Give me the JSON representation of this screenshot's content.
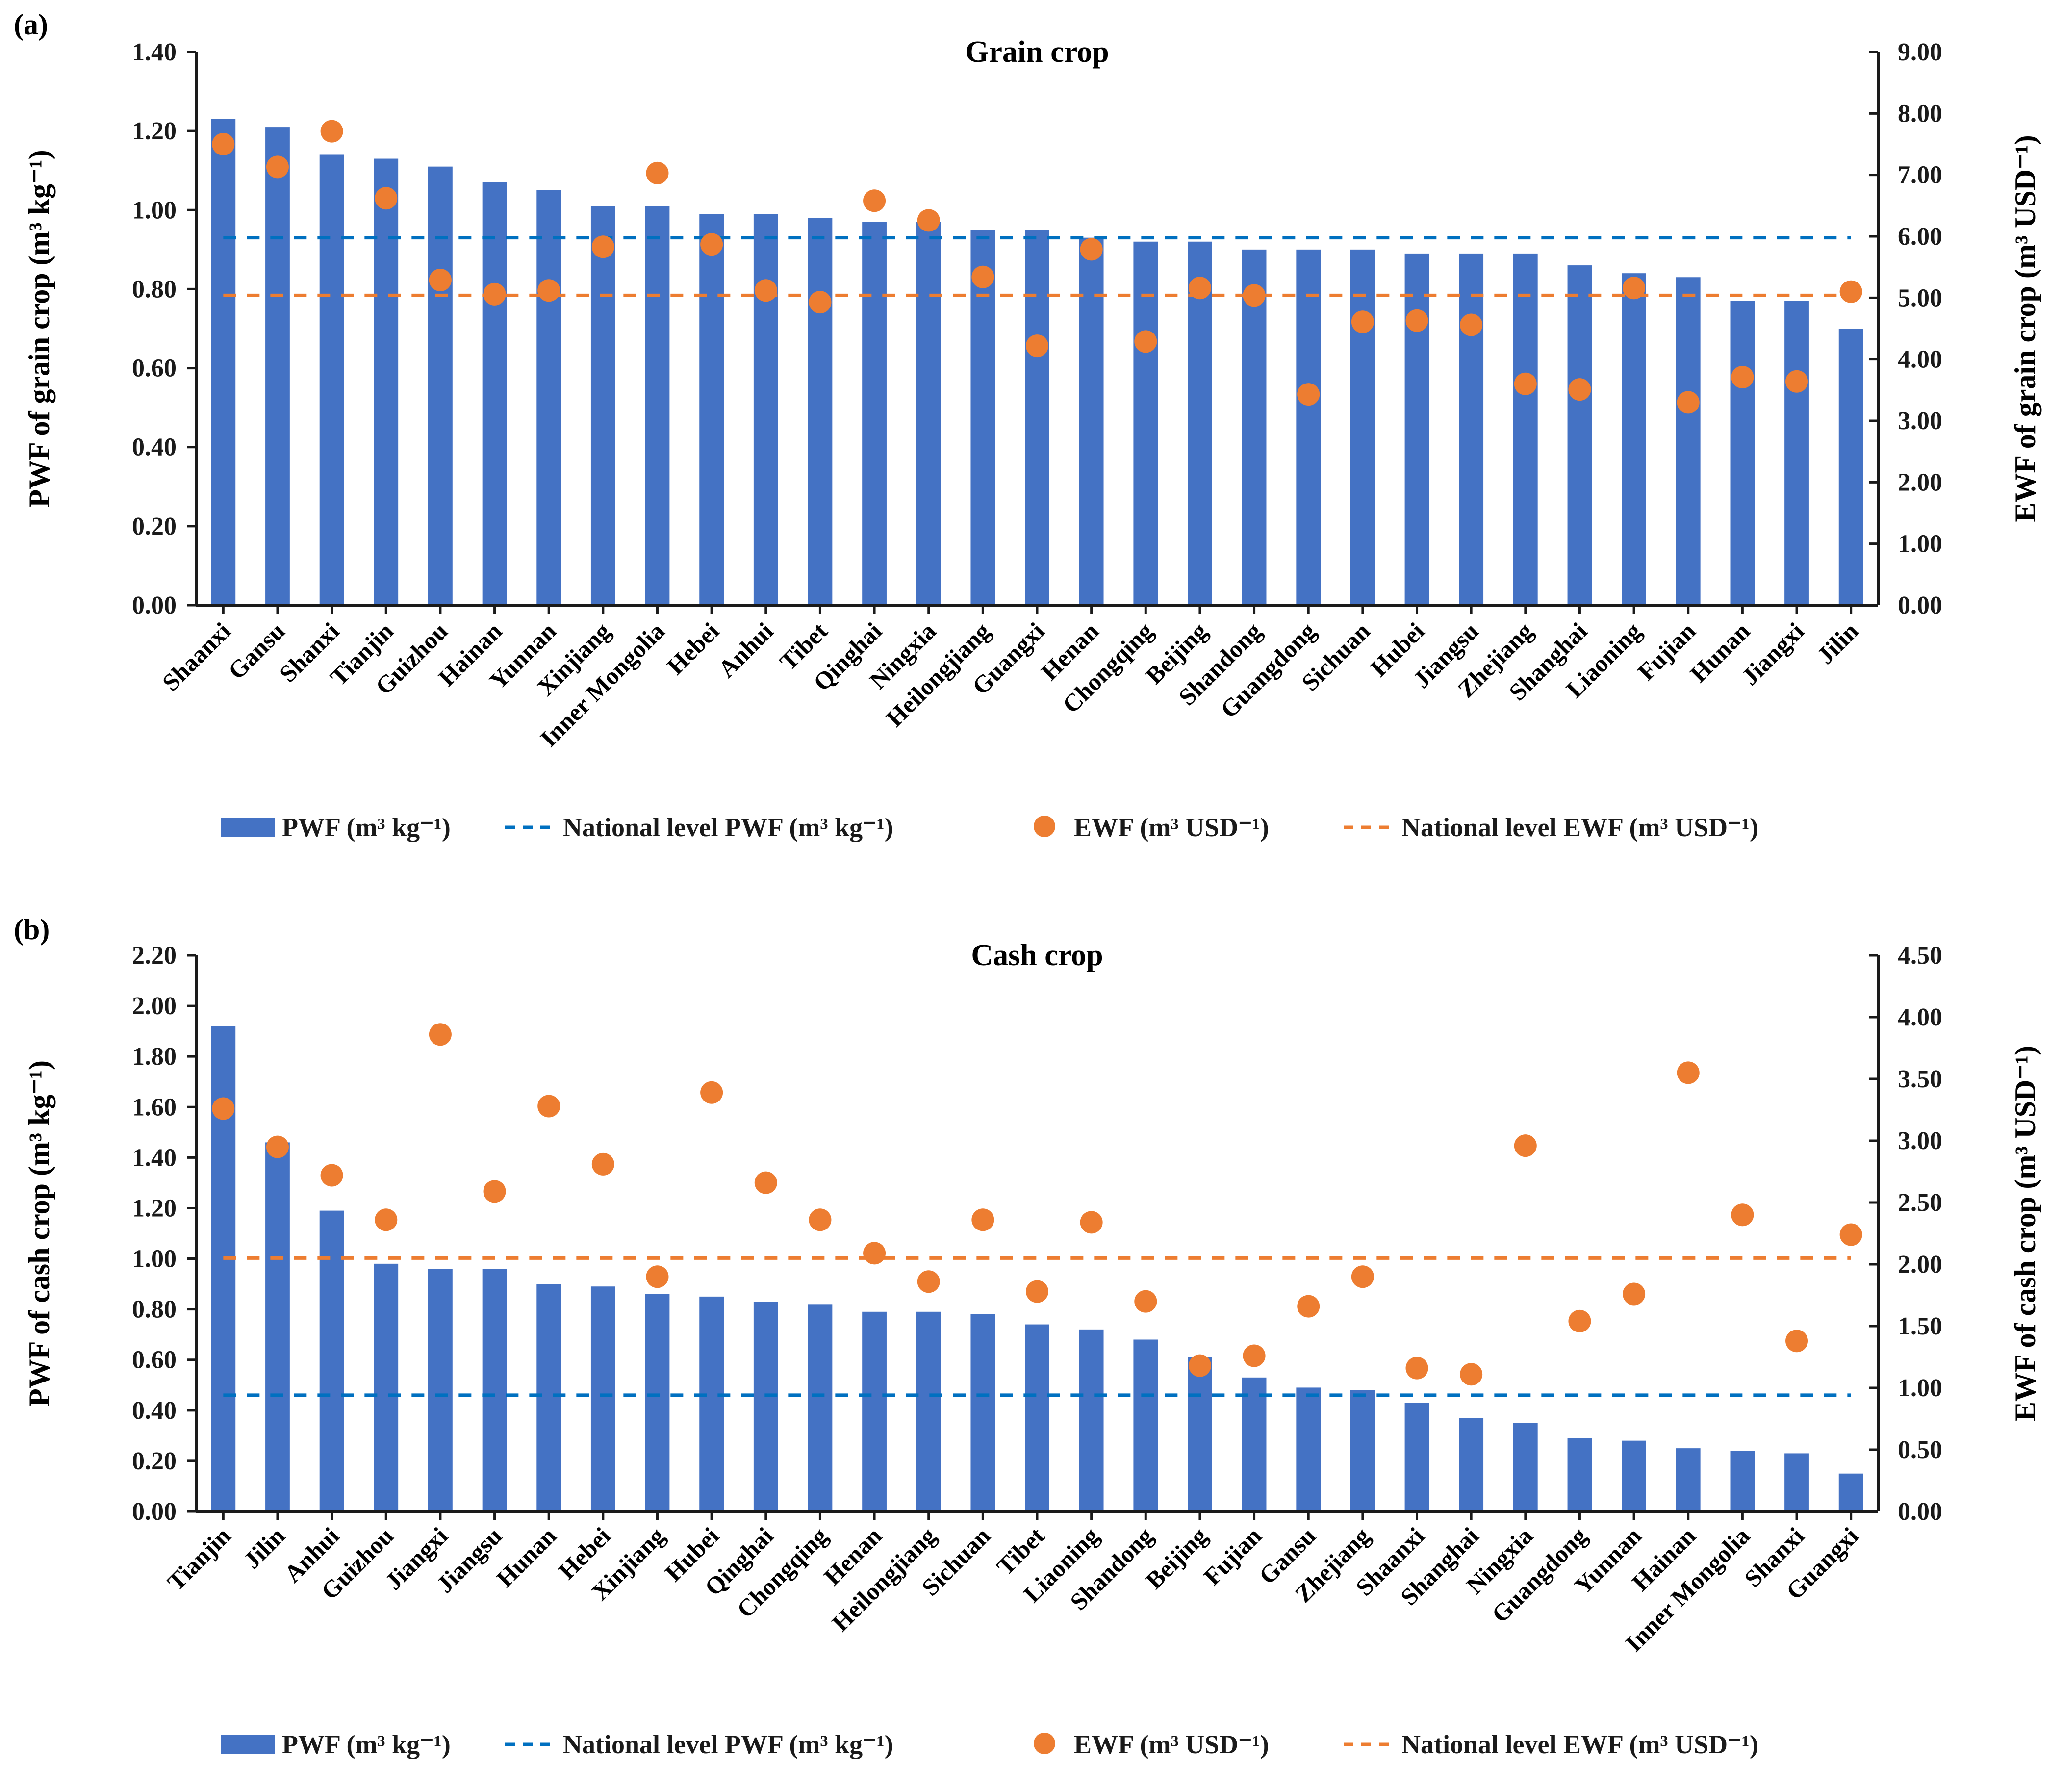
{
  "colors": {
    "bar": "#4472C4",
    "dot": "#ED7D31",
    "national_pwf": "#0070C0",
    "national_ewf": "#ED7D31",
    "axis": "#1a1a1a"
  },
  "chart_data": [
    {
      "type": "bar",
      "panel_label": "(a)",
      "title": "Grain crop",
      "ylabel": "PWF of grain crop (m³ kg⁻¹)",
      "y2label": "EWF of grain crop (m³ USD⁻¹)",
      "ylim": [
        0,
        1.4
      ],
      "y2lim": [
        0,
        9
      ],
      "yticks": [
        "0.00",
        "0.20",
        "0.40",
        "0.60",
        "0.80",
        "1.00",
        "1.20",
        "1.40"
      ],
      "y2ticks": [
        "0.00",
        "1.00",
        "2.00",
        "3.00",
        "4.00",
        "5.00",
        "6.00",
        "7.00",
        "8.00",
        "9.00"
      ],
      "categories": [
        "Shaanxi",
        "Gansu",
        "Shanxi",
        "Tianjin",
        "Guizhou",
        "Hainan",
        "Yunnan",
        "Xinjiang",
        "Inner Mongolia",
        "Hebei",
        "Anhui",
        "Tibet",
        "Qinghai",
        "Ningxia",
        "Heilongjiang",
        "Guangxi",
        "Henan",
        "Chongqing",
        "Beijing",
        "Shandong",
        "Guangdong",
        "Sichuan",
        "Hubei",
        "Jiangsu",
        "Zhejiang",
        "Shanghai",
        "Liaoning",
        "Fujian",
        "Hunan",
        "Jiangxi",
        "Jilin"
      ],
      "series": [
        {
          "name": "PWF (m³ kg⁻¹)",
          "kind": "bar",
          "axis": "left",
          "values": [
            1.23,
            1.21,
            1.14,
            1.13,
            1.11,
            1.07,
            1.05,
            1.01,
            1.01,
            0.99,
            0.99,
            0.98,
            0.97,
            0.97,
            0.95,
            0.95,
            0.93,
            0.92,
            0.92,
            0.9,
            0.9,
            0.9,
            0.89,
            0.89,
            0.89,
            0.86,
            0.84,
            0.83,
            0.77,
            0.77,
            0.7
          ]
        },
        {
          "name": "EWF (m³ USD⁻¹)",
          "kind": "scatter",
          "axis": "right",
          "values": [
            7.5,
            7.13,
            7.71,
            6.62,
            5.29,
            5.06,
            5.12,
            5.83,
            7.03,
            5.87,
            5.12,
            4.93,
            6.58,
            6.26,
            5.34,
            4.22,
            5.79,
            4.29,
            5.16,
            5.04,
            3.43,
            4.61,
            4.63,
            4.56,
            3.6,
            3.51,
            5.16,
            3.3,
            3.71,
            3.64,
            5.1
          ]
        }
      ],
      "national_pwf": 0.93,
      "national_ewf": 5.04,
      "legend": [
        "PWF (m³ kg⁻¹)",
        "National level PWF (m³ kg⁻¹)",
        "EWF (m³ USD⁻¹)",
        "National level EWF (m³ USD⁻¹)"
      ],
      "legend_position": "bottom",
      "grid": false
    },
    {
      "type": "bar",
      "panel_label": "(b)",
      "title": "Cash crop",
      "ylabel": "PWF of cash crop (m³ kg⁻¹)",
      "y2label": "EWF of cash crop (m³ USD⁻¹)",
      "ylim": [
        0,
        2.2
      ],
      "y2lim": [
        0,
        4.5
      ],
      "yticks": [
        "0.00",
        "0.20",
        "0.40",
        "0.60",
        "0.80",
        "1.00",
        "1.20",
        "1.40",
        "1.60",
        "1.80",
        "2.00",
        "2.20"
      ],
      "y2ticks": [
        "0.00",
        "0.50",
        "1.00",
        "1.50",
        "2.00",
        "2.50",
        "3.00",
        "3.50",
        "4.00",
        "4.50"
      ],
      "categories": [
        "Tianjin",
        "Jilin",
        "Anhui",
        "Guizhou",
        "Jiangxi",
        "Jiangsu",
        "Hunan",
        "Hebei",
        "Xinjiang",
        "Hubei",
        "Qinghai",
        "Chongqing",
        "Henan",
        "Heilongjiang",
        "Sichuan",
        "Tibet",
        "Liaoning",
        "Shandong",
        "Beijing",
        "Fujian",
        "Gansu",
        "Zhejiang",
        "Shaanxi",
        "Shanghai",
        "Ningxia",
        "Guangdong",
        "Yunnan",
        "Hainan",
        "Inner Mongolia",
        "Shanxi",
        "Guangxi"
      ],
      "series": [
        {
          "name": "PWF (m³ kg⁻¹)",
          "kind": "bar",
          "axis": "left",
          "values": [
            1.92,
            1.46,
            1.19,
            0.98,
            0.96,
            0.96,
            0.9,
            0.89,
            0.86,
            0.85,
            0.83,
            0.82,
            0.79,
            0.79,
            0.78,
            0.74,
            0.72,
            0.68,
            0.61,
            0.53,
            0.49,
            0.48,
            0.43,
            0.37,
            0.35,
            0.29,
            0.28,
            0.25,
            0.24,
            0.23,
            0.15
          ]
        },
        {
          "name": "EWF (m³ USD⁻¹)",
          "kind": "scatter",
          "axis": "right",
          "values": [
            3.26,
            2.95,
            2.72,
            2.36,
            3.86,
            2.59,
            3.28,
            2.81,
            1.9,
            3.39,
            2.66,
            2.36,
            2.09,
            1.86,
            2.36,
            1.78,
            2.34,
            1.7,
            1.18,
            1.26,
            1.66,
            1.9,
            1.16,
            1.11,
            2.96,
            1.54,
            1.76,
            3.55,
            2.4,
            1.38,
            2.24
          ]
        }
      ],
      "national_pwf": 0.46,
      "national_ewf": 2.05,
      "legend": [
        "PWF (m³ kg⁻¹)",
        "National level PWF (m³ kg⁻¹)",
        "EWF (m³ USD⁻¹)",
        "National level EWF (m³ USD⁻¹)"
      ],
      "legend_position": "bottom",
      "grid": false
    }
  ]
}
